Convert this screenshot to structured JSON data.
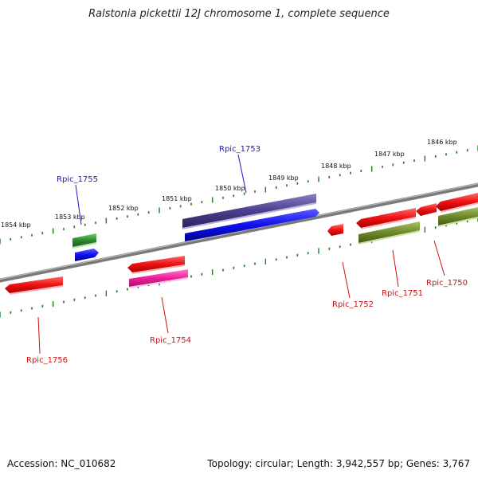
{
  "title": "Ralstonia pickettii 12J chromosome 1, complete sequence",
  "footer": {
    "accession": "Accession: NC_010682",
    "summary": "Topology: circular; Length: 3,942,557 bp; Genes: 3,767"
  },
  "kbp_labels": [
    "1854 kbp",
    "1853 kbp",
    "1852 kbp",
    "1851 kbp",
    "1850 kbp",
    "1849 kbp",
    "1848 kbp",
    "1847 kbp",
    "1846 kbp"
  ],
  "gene_labels": {
    "rpic_1755": "Rpic_1755",
    "rpic_1753": "Rpic_1753",
    "rpic_1756": "Rpic_1756",
    "rpic_1754": "Rpic_1754",
    "rpic_1752": "Rpic_1752",
    "rpic_1751": "Rpic_1751",
    "rpic_1750": "Rpic_1750"
  },
  "colors": {
    "blue_label": "#1a1acc",
    "red_label": "#cc1111",
    "red": "#ee1111",
    "blue": "#1010ee",
    "navy": "#4a3f8c",
    "green": "#2e8a2e",
    "olive": "#6d8a2a",
    "magenta": "#ee1f9b",
    "backbone": "#7a7a7a",
    "ticks": "#1f7a1f"
  }
}
